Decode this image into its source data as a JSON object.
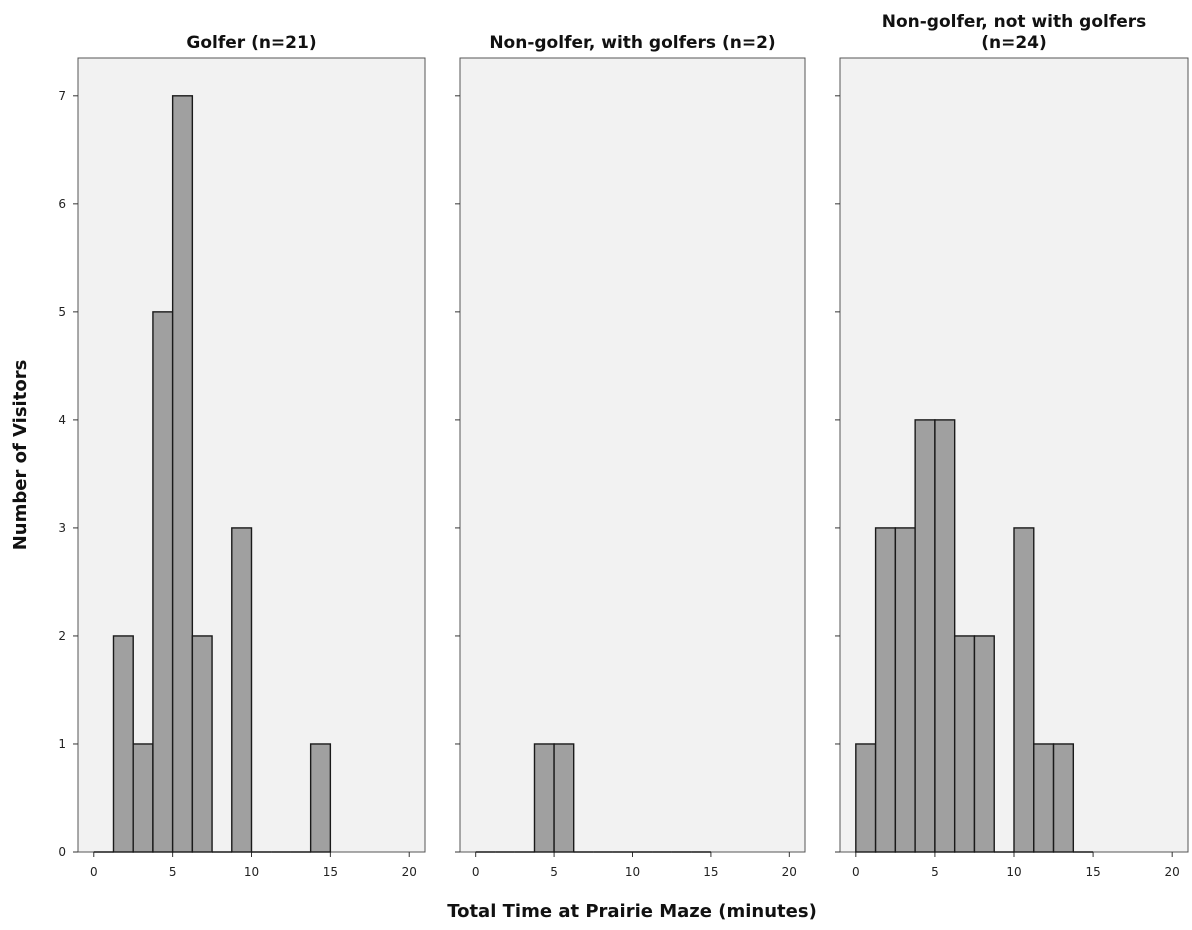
{
  "chart_data": {
    "type": "bar",
    "subtype": "paneled-histogram",
    "xlabel": "Total Time at Prairie Maze (minutes)",
    "ylabel": "Number of Visitors",
    "xlim": [
      -1,
      21
    ],
    "ylim": [
      0,
      7.35
    ],
    "xticks": [
      0,
      5,
      10,
      15,
      20
    ],
    "yticks": [
      0,
      1,
      2,
      3,
      4,
      5,
      6,
      7
    ],
    "bin_width": 1.25,
    "bar_color": "#a0a0a0",
    "panel_background": "#f2f2f2",
    "grid": false,
    "legend": "none",
    "panels": [
      {
        "title_lines": [
          "Golfer (n=21)"
        ],
        "bins": [
          {
            "start": 0,
            "count": 0
          },
          {
            "start": 1.25,
            "count": 2
          },
          {
            "start": 2.5,
            "count": 1
          },
          {
            "start": 3.75,
            "count": 5
          },
          {
            "start": 5,
            "count": 7
          },
          {
            "start": 6.25,
            "count": 2
          },
          {
            "start": 7.5,
            "count": 0
          },
          {
            "start": 8.75,
            "count": 3
          },
          {
            "start": 10,
            "count": 0
          },
          {
            "start": 11.25,
            "count": 0
          },
          {
            "start": 12.5,
            "count": 0
          },
          {
            "start": 13.75,
            "count": 1
          }
        ]
      },
      {
        "title_lines": [
          "Non-golfer, with golfers (n=2)"
        ],
        "bins": [
          {
            "start": 0,
            "count": 0
          },
          {
            "start": 1.25,
            "count": 0
          },
          {
            "start": 2.5,
            "count": 0
          },
          {
            "start": 3.75,
            "count": 1
          },
          {
            "start": 5,
            "count": 1
          },
          {
            "start": 6.25,
            "count": 0
          },
          {
            "start": 7.5,
            "count": 0
          },
          {
            "start": 8.75,
            "count": 0
          },
          {
            "start": 10,
            "count": 0
          },
          {
            "start": 11.25,
            "count": 0
          },
          {
            "start": 12.5,
            "count": 0
          },
          {
            "start": 13.75,
            "count": 0
          }
        ]
      },
      {
        "title_lines": [
          "Non-golfer, not with golfers",
          "(n=24)"
        ],
        "bins": [
          {
            "start": 0,
            "count": 1
          },
          {
            "start": 1.25,
            "count": 3
          },
          {
            "start": 2.5,
            "count": 3
          },
          {
            "start": 3.75,
            "count": 4
          },
          {
            "start": 5,
            "count": 4
          },
          {
            "start": 6.25,
            "count": 2
          },
          {
            "start": 7.5,
            "count": 2
          },
          {
            "start": 8.75,
            "count": 0
          },
          {
            "start": 10,
            "count": 3
          },
          {
            "start": 11.25,
            "count": 1
          },
          {
            "start": 12.5,
            "count": 1
          },
          {
            "start": 13.75,
            "count": 0
          }
        ]
      }
    ]
  }
}
